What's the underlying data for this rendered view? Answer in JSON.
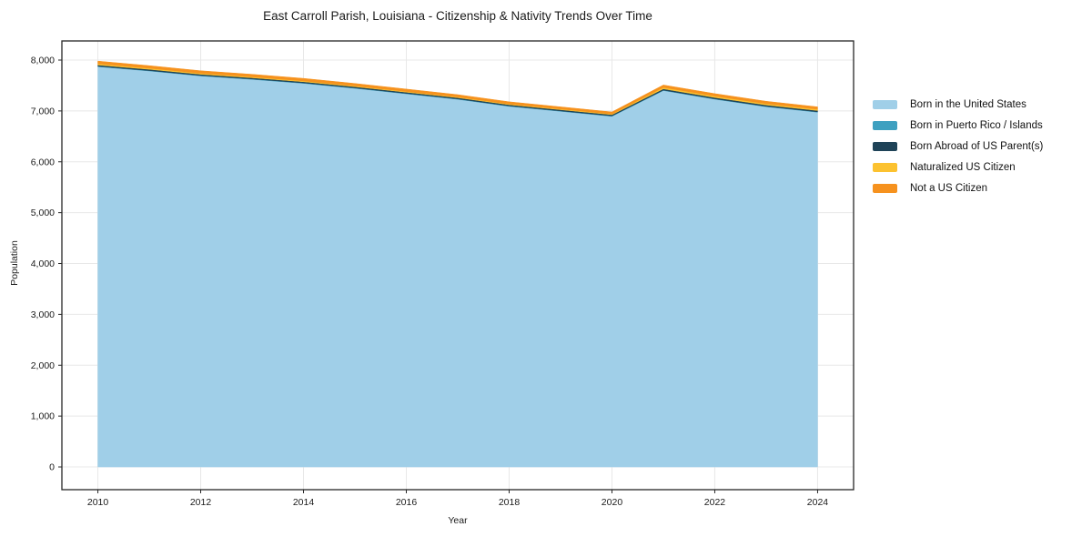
{
  "chart": {
    "title": "East Carroll Parish, Louisiana - Citizenship & Nativity Trends Over Time",
    "xlabel": "Year",
    "ylabel": "Population"
  },
  "chart_data": {
    "type": "area",
    "stacked": true,
    "title": "East Carroll Parish, Louisiana - Citizenship & Nativity Trends Over Time",
    "xlabel": "Year",
    "ylabel": "Population",
    "grid": true,
    "legend_position": "right",
    "xlim": [
      2009.3,
      2024.7
    ],
    "ylim": [
      -447,
      8376
    ],
    "x": [
      2010,
      2011,
      2012,
      2013,
      2014,
      2015,
      2016,
      2017,
      2018,
      2019,
      2020,
      2021,
      2022,
      2023,
      2024
    ],
    "series": [
      {
        "name": "Born in the United States",
        "color": "#a0cfe8",
        "values": [
          7870,
          7785,
          7688,
          7620,
          7542,
          7444,
          7336,
          7228,
          7090,
          6992,
          6894,
          7400,
          7230,
          7082,
          6974
        ]
      },
      {
        "name": "Born in Puerto Rico / Islands",
        "color": "#3ea0c0",
        "values": [
          8,
          8,
          8,
          8,
          8,
          8,
          8,
          8,
          8,
          8,
          8,
          8,
          8,
          8,
          8
        ]
      },
      {
        "name": "Born Abroad of US Parent(s)",
        "color": "#1f4358",
        "values": [
          25,
          25,
          24,
          24,
          24,
          24,
          24,
          24,
          24,
          24,
          24,
          26,
          26,
          26,
          26
        ]
      },
      {
        "name": "Naturalized US Citizen",
        "color": "#fcc230",
        "values": [
          25,
          22,
          20,
          18,
          16,
          16,
          14,
          14,
          14,
          14,
          14,
          28,
          28,
          26,
          26
        ]
      },
      {
        "name": "Not a US Citizen",
        "color": "#f6921e",
        "values": [
          52,
          50,
          50,
          50,
          50,
          48,
          48,
          46,
          44,
          42,
          40,
          48,
          48,
          48,
          46
        ]
      }
    ],
    "totals": [
      7980,
      7890,
      7790,
      7720,
      7640,
      7540,
      7430,
      7320,
      7180,
      7080,
      6980,
      7510,
      7340,
      7190,
      7080
    ],
    "xticks": {
      "values": [
        2010,
        2012,
        2014,
        2016,
        2018,
        2020,
        2022,
        2024
      ],
      "labels": [
        "2010",
        "2012",
        "2014",
        "2016",
        "2018",
        "2020",
        "2022",
        "2024"
      ]
    },
    "yticks": {
      "values": [
        0,
        1000,
        2000,
        3000,
        4000,
        5000,
        6000,
        7000,
        8000
      ],
      "labels": [
        "0",
        "1,000",
        "2,000",
        "3,000",
        "4,000",
        "5,000",
        "6,000",
        "7,000",
        "8,000"
      ]
    },
    "colors": {
      "grid": "#e8e8e8",
      "spine": "#262626",
      "background": "#ffffff"
    }
  }
}
